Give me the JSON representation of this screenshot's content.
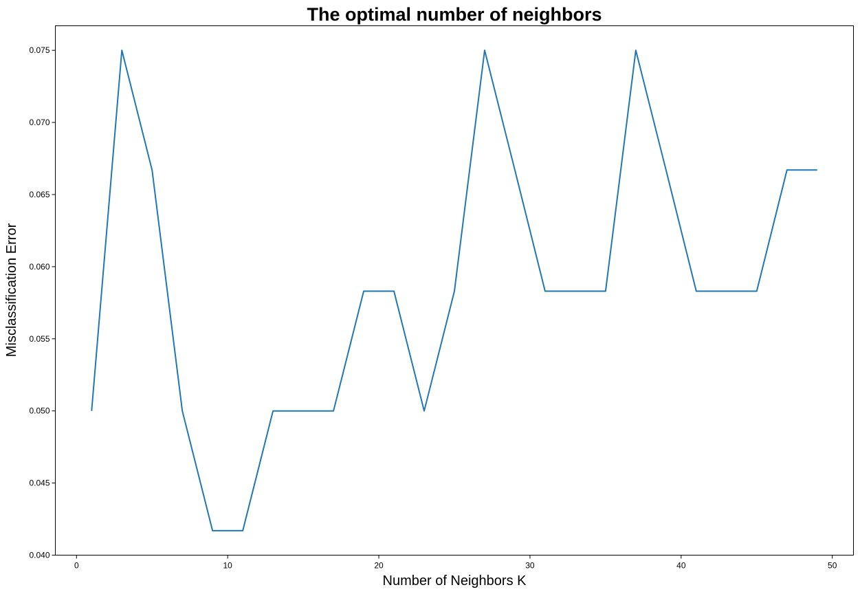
{
  "chart_data": {
    "type": "line",
    "title": "The optimal number of neighbors",
    "xlabel": "Number of Neighbors K",
    "ylabel": "Misclassification Error",
    "xlim": [
      -1.4,
      51.4
    ],
    "ylim": [
      0.04,
      0.0767
    ],
    "x_ticks": [
      0,
      10,
      20,
      30,
      40,
      50
    ],
    "y_ticks": [
      0.04,
      0.045,
      0.05,
      0.055,
      0.06,
      0.065,
      0.07,
      0.075
    ],
    "x_tick_labels": [
      "0",
      "10",
      "20",
      "30",
      "40",
      "50"
    ],
    "y_tick_labels": [
      "0.040",
      "0.045",
      "0.050",
      "0.055",
      "0.060",
      "0.065",
      "0.070",
      "0.075"
    ],
    "grid": false,
    "series": [
      {
        "color": "#1f77b4",
        "x": [
          1,
          3,
          5,
          7,
          9,
          11,
          13,
          15,
          17,
          19,
          21,
          23,
          25,
          27,
          29,
          31,
          33,
          35,
          37,
          39,
          41,
          43,
          45,
          47,
          49
        ],
        "y": [
          0.05,
          0.075,
          0.0667,
          0.05,
          0.0417,
          0.0417,
          0.05,
          0.05,
          0.05,
          0.0583,
          0.0583,
          0.05,
          0.0583,
          0.075,
          0.0667,
          0.0583,
          0.0583,
          0.0583,
          0.075,
          0.0667,
          0.0583,
          0.0583,
          0.0583,
          0.0667,
          0.0667
        ]
      }
    ]
  }
}
